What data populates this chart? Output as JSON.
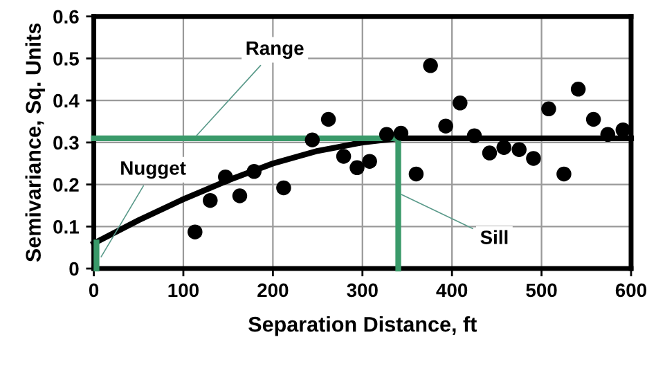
{
  "chart_data": {
    "type": "scatter",
    "xlabel": "Separation Distance, ft",
    "ylabel": "Semivariance, Sq. Units",
    "xlim": [
      0,
      600
    ],
    "xticks": [
      0,
      100,
      200,
      300,
      400,
      500,
      600
    ],
    "ylim": [
      0,
      0.6
    ],
    "yticks": [
      0,
      0.1,
      0.2,
      0.3,
      0.4,
      0.5,
      0.6
    ],
    "grid": true,
    "series": [
      {
        "marker": "circle",
        "color": "#000000",
        "x": [
          113,
          130,
          147,
          163,
          179,
          212,
          244,
          262,
          279,
          294,
          308,
          327,
          343,
          360,
          376,
          393,
          409,
          425,
          442,
          458,
          475,
          491,
          508,
          525,
          541,
          558,
          574,
          591
        ],
        "values": [
          0.087,
          0.162,
          0.218,
          0.173,
          0.231,
          0.192,
          0.306,
          0.355,
          0.267,
          0.24,
          0.255,
          0.319,
          0.322,
          0.225,
          0.483,
          0.339,
          0.394,
          0.316,
          0.275,
          0.288,
          0.283,
          0.262,
          0.38,
          0.225,
          0.427,
          0.355,
          0.319,
          0.33
        ]
      },
      {
        "type": "line",
        "marker": "none",
        "color": "#000000",
        "x": [
          0,
          50,
          100,
          150,
          200,
          250,
          300,
          340,
          600
        ],
        "values": [
          0.06,
          0.115,
          0.165,
          0.21,
          0.25,
          0.28,
          0.3,
          0.31,
          0.31
        ]
      },
      {
        "type": "line",
        "marker": "none",
        "color": "#3a9a6a",
        "x": [
          0,
          340,
          340
        ],
        "values": [
          0.31,
          0.31,
          0
        ]
      },
      {
        "type": "line",
        "marker": "none",
        "color": "#3a9a6a",
        "x": [
          3,
          3
        ],
        "values": [
          0,
          0.062
        ]
      }
    ],
    "annotations": [
      {
        "text": "Range",
        "x": 112,
        "y": 0.31
      },
      {
        "text": "Nugget",
        "x": 6,
        "y": 0.02
      },
      {
        "text": "Sill",
        "x": 340,
        "y": 0.18
      }
    ]
  }
}
